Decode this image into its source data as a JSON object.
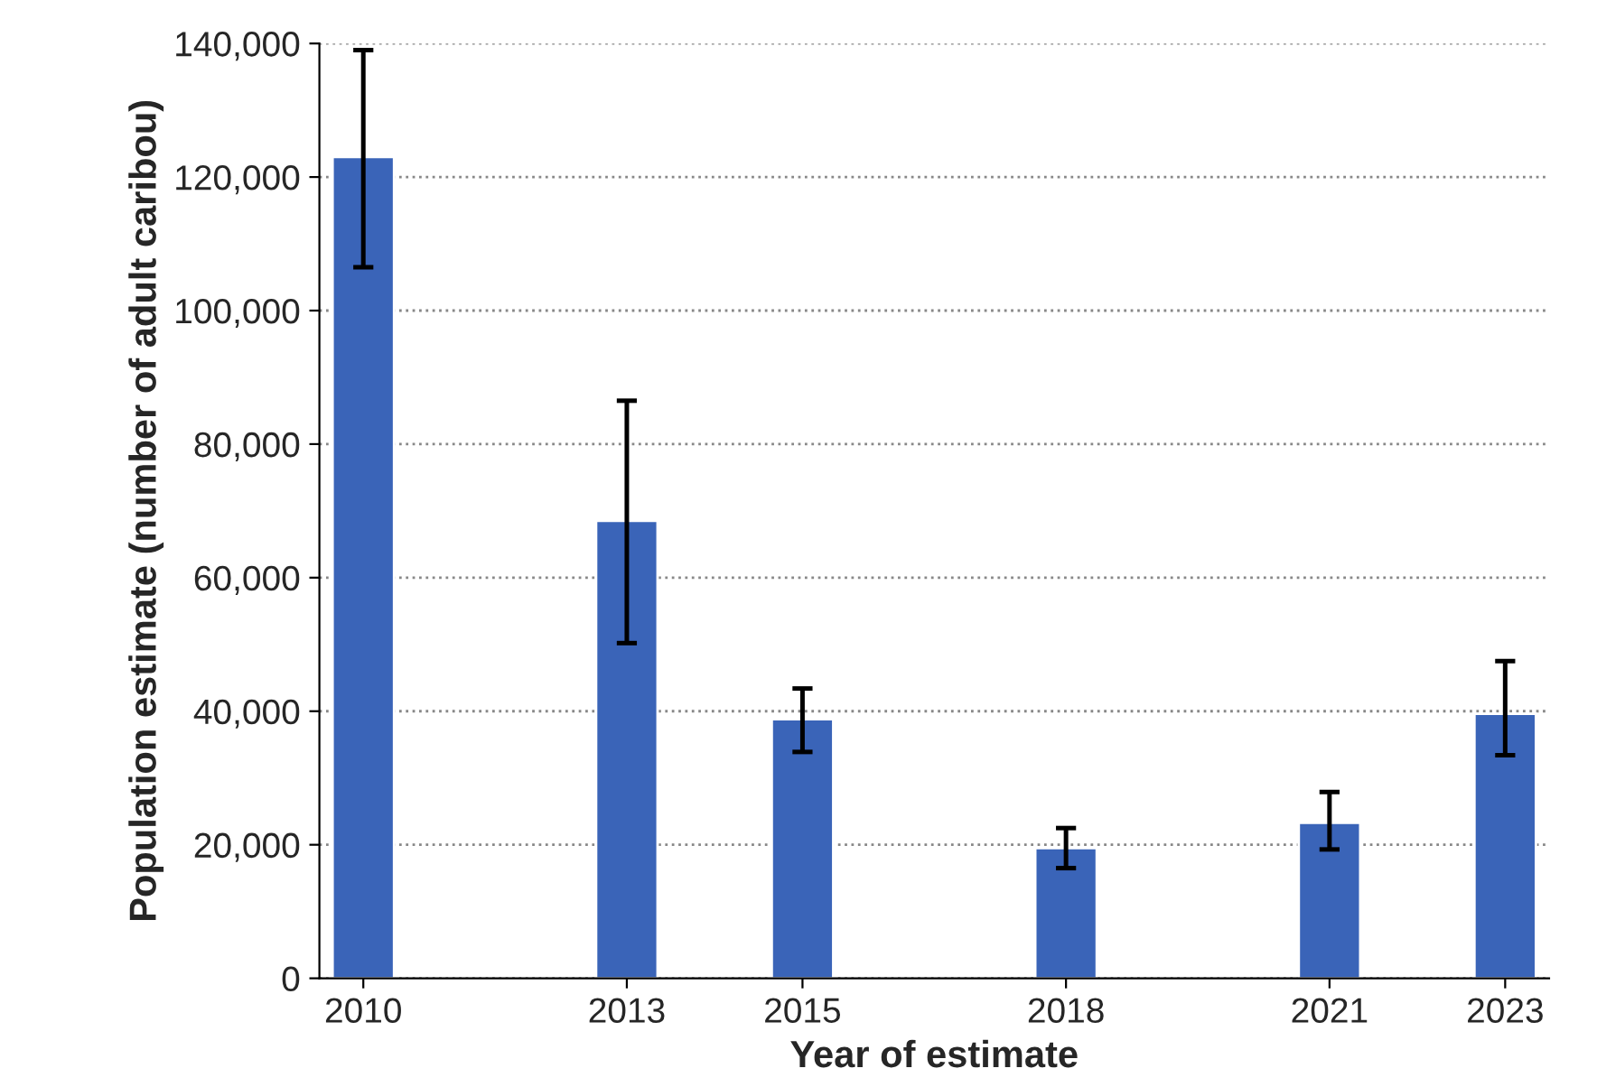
{
  "chart_data": {
    "type": "bar",
    "xlabel": "Year of estimate",
    "ylabel": "Population estimate (number of adult caribou)",
    "x": [
      2010,
      2013,
      2015,
      2018,
      2021,
      2023
    ],
    "values": [
      123000,
      68500,
      38800,
      19500,
      23300,
      39600
    ],
    "errors": [
      [
        106500,
        139000
      ],
      [
        50200,
        86500
      ],
      [
        33900,
        43400
      ],
      [
        16500,
        22500
      ],
      [
        19300,
        27900
      ],
      [
        33400,
        47500
      ]
    ],
    "color": "#3a64b8",
    "xlim": [
      2009.5,
      2023.5
    ],
    "xticks": [
      2010,
      2013,
      2015,
      2018,
      2021,
      2023
    ],
    "ylim": [
      0,
      140000
    ],
    "yticks": [
      {
        "value": 0,
        "label": "0"
      },
      {
        "value": 20000,
        "label": "20,000"
      },
      {
        "value": 40000,
        "label": "40,000"
      },
      {
        "value": 60000,
        "label": "60,000"
      },
      {
        "value": 80000,
        "label": "80,000"
      },
      {
        "value": 100000,
        "label": "100,000"
      },
      {
        "value": 120000,
        "label": "120,000"
      },
      {
        "value": 140000,
        "label": "140,000"
      }
    ],
    "grid": "y"
  }
}
